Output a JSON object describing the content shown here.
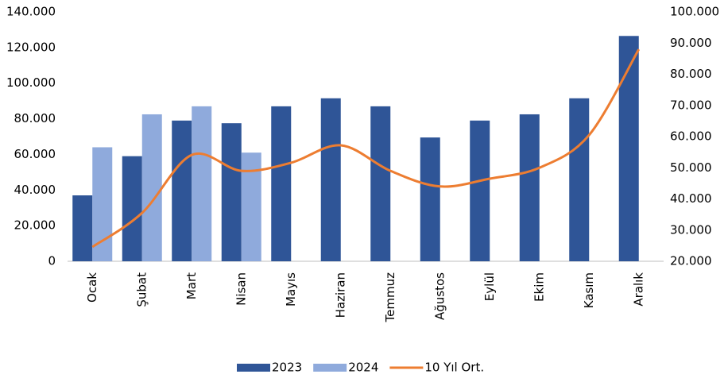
{
  "chart_data": {
    "type": "bar",
    "categories": [
      "Ocak",
      "Şubat",
      "Mart",
      "Nisan",
      "Mayıs",
      "Haziran",
      "Temmuz",
      "Ağustos",
      "Eylül",
      "Ekim",
      "Kasım",
      "Aralık"
    ],
    "series": [
      {
        "name": "2023",
        "color": "#2f5597",
        "values": [
          37000,
          59000,
          79000,
          77500,
          87000,
          91500,
          87000,
          69500,
          79000,
          82500,
          91500,
          126500
        ]
      },
      {
        "name": "2024",
        "color": "#8faadc",
        "values": [
          64000,
          82500,
          87000,
          61000,
          null,
          null,
          null,
          null,
          null,
          null,
          null,
          null
        ]
      },
      {
        "name": "10 Yıl Ort.",
        "type": "line",
        "axis": "y2",
        "color": "#ed7d31",
        "values": [
          24600,
          35500,
          54100,
          49000,
          51600,
          57200,
          49000,
          44000,
          46500,
          50000,
          60500,
          88000
        ]
      }
    ],
    "ylim": [
      0,
      140000
    ],
    "yticks": [
      0,
      {
        "value": 20000,
        "label": "20.000"
      },
      {
        "value": 40000,
        "label": "40.000"
      },
      {
        "value": 60000,
        "label": "60.000"
      },
      {
        "value": 80000,
        "label": "80.000"
      },
      {
        "value": 100000,
        "label": "100.000"
      },
      {
        "value": 120000,
        "label": "120.000"
      },
      {
        "value": 140000,
        "label": "140.000"
      }
    ],
    "y2lim": [
      20000,
      100000
    ],
    "y2ticks": [
      {
        "value": 20000,
        "label": "20.000"
      },
      {
        "value": 30000,
        "label": "30.000"
      },
      {
        "value": 40000,
        "label": "40.000"
      },
      {
        "value": 50000,
        "label": "50.000"
      },
      {
        "value": 60000,
        "label": "60.000"
      },
      {
        "value": 70000,
        "label": "70.000"
      },
      {
        "value": 80000,
        "label": "80.000"
      },
      {
        "value": 90000,
        "label": "90.000"
      },
      {
        "value": {
          "value": 100000,
          "label": "100.000"
        },
        "label": "100.000"
      }
    ],
    "legend": "bottom"
  }
}
